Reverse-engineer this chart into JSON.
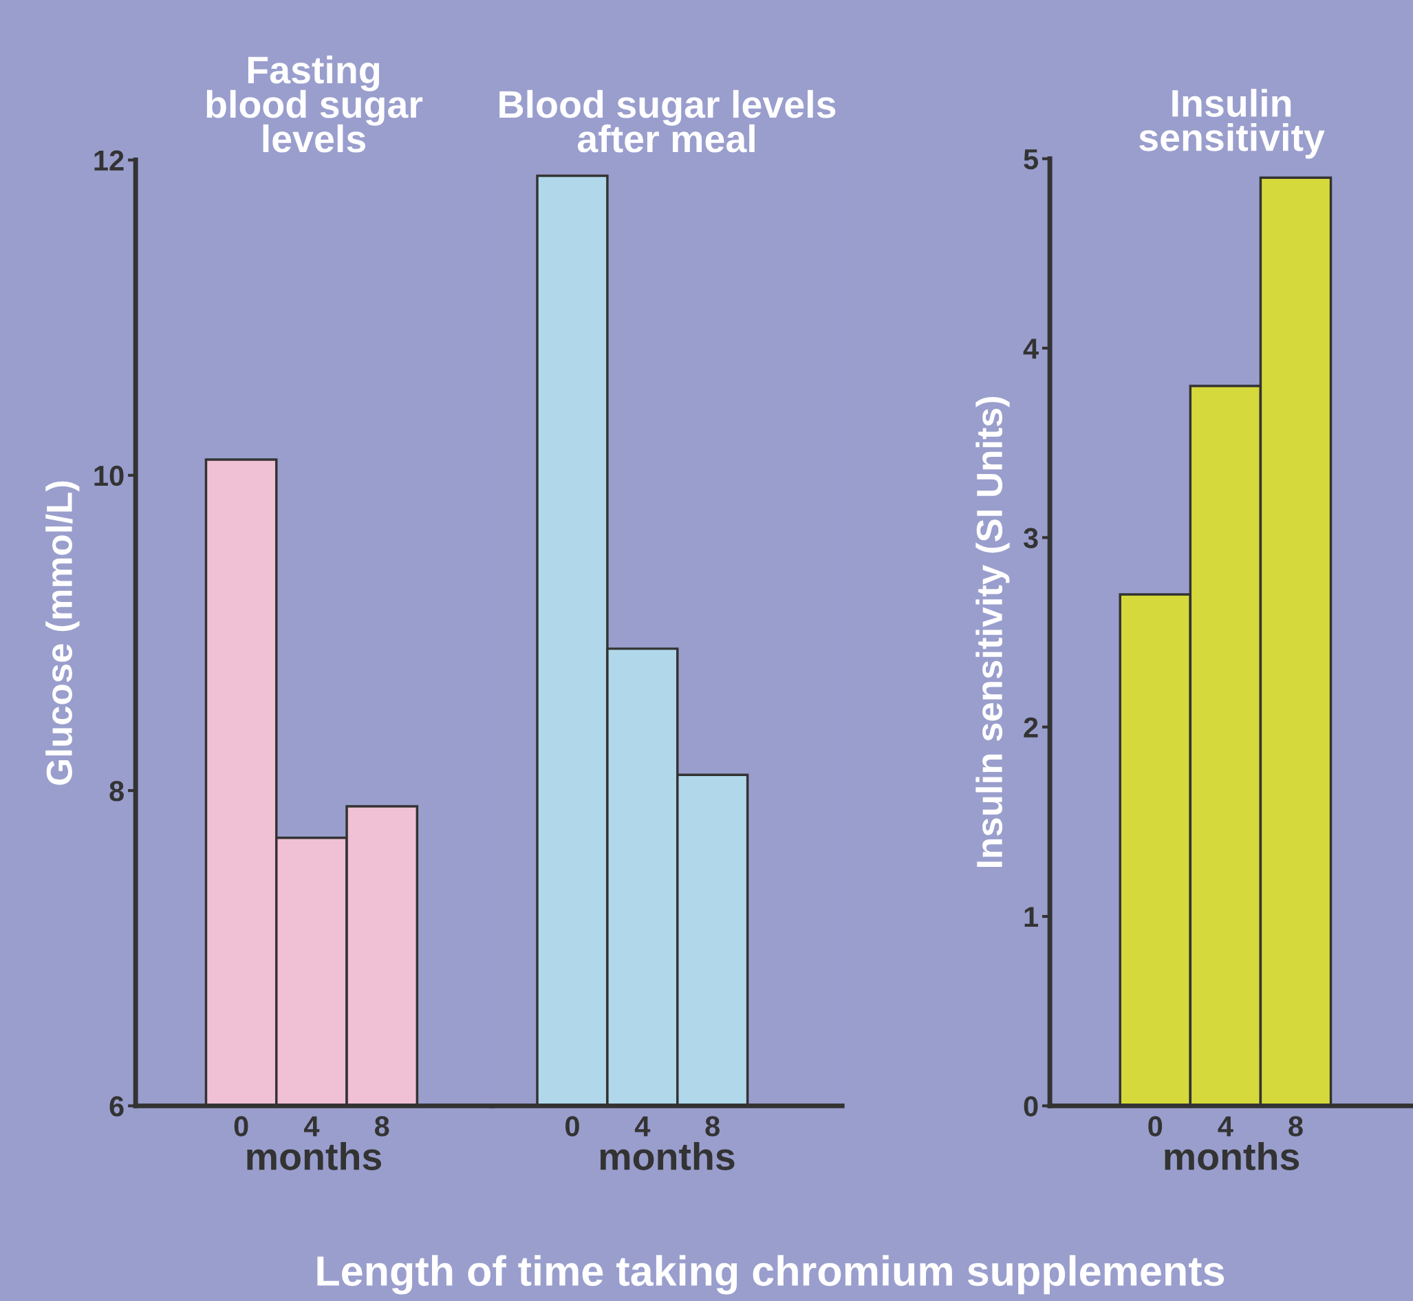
{
  "chart_data": [
    {
      "type": "bar",
      "title": "Fasting\nblood sugar\nlevels",
      "xlabel": "months",
      "ylabel": "Glucose (mmol/L)",
      "categories": [
        "0",
        "4",
        "8"
      ],
      "values": [
        10.1,
        7.7,
        7.9
      ],
      "color": "#f0c0d4",
      "ylim": [
        6,
        12
      ],
      "yticks": [
        6,
        8,
        10,
        12
      ],
      "grid": false,
      "annotations": [
        "Length of time taking chromium supplements"
      ]
    },
    {
      "type": "bar",
      "title": "Blood sugar levels\nafter meal",
      "xlabel": "months",
      "categories": [
        "0",
        "4",
        "8"
      ],
      "values": [
        11.9,
        8.9,
        8.1
      ],
      "color": "#b0d8ea",
      "ylim": [
        6,
        12
      ],
      "yticks": [
        6,
        8,
        10,
        12
      ],
      "tick_labels": "x",
      "grid": false
    },
    {
      "type": "bar",
      "title": "Insulin\nsensitivity",
      "xlabel": "months",
      "ylabel": "Insulin sensitivity (SI Units)",
      "categories": [
        "0",
        "4",
        "8"
      ],
      "values": [
        2.7,
        3.8,
        4.9
      ],
      "color": "#d6d93b",
      "ylim": [
        0,
        5
      ],
      "yticks": [
        0,
        1,
        2,
        3,
        4,
        5
      ],
      "grid": false
    }
  ]
}
